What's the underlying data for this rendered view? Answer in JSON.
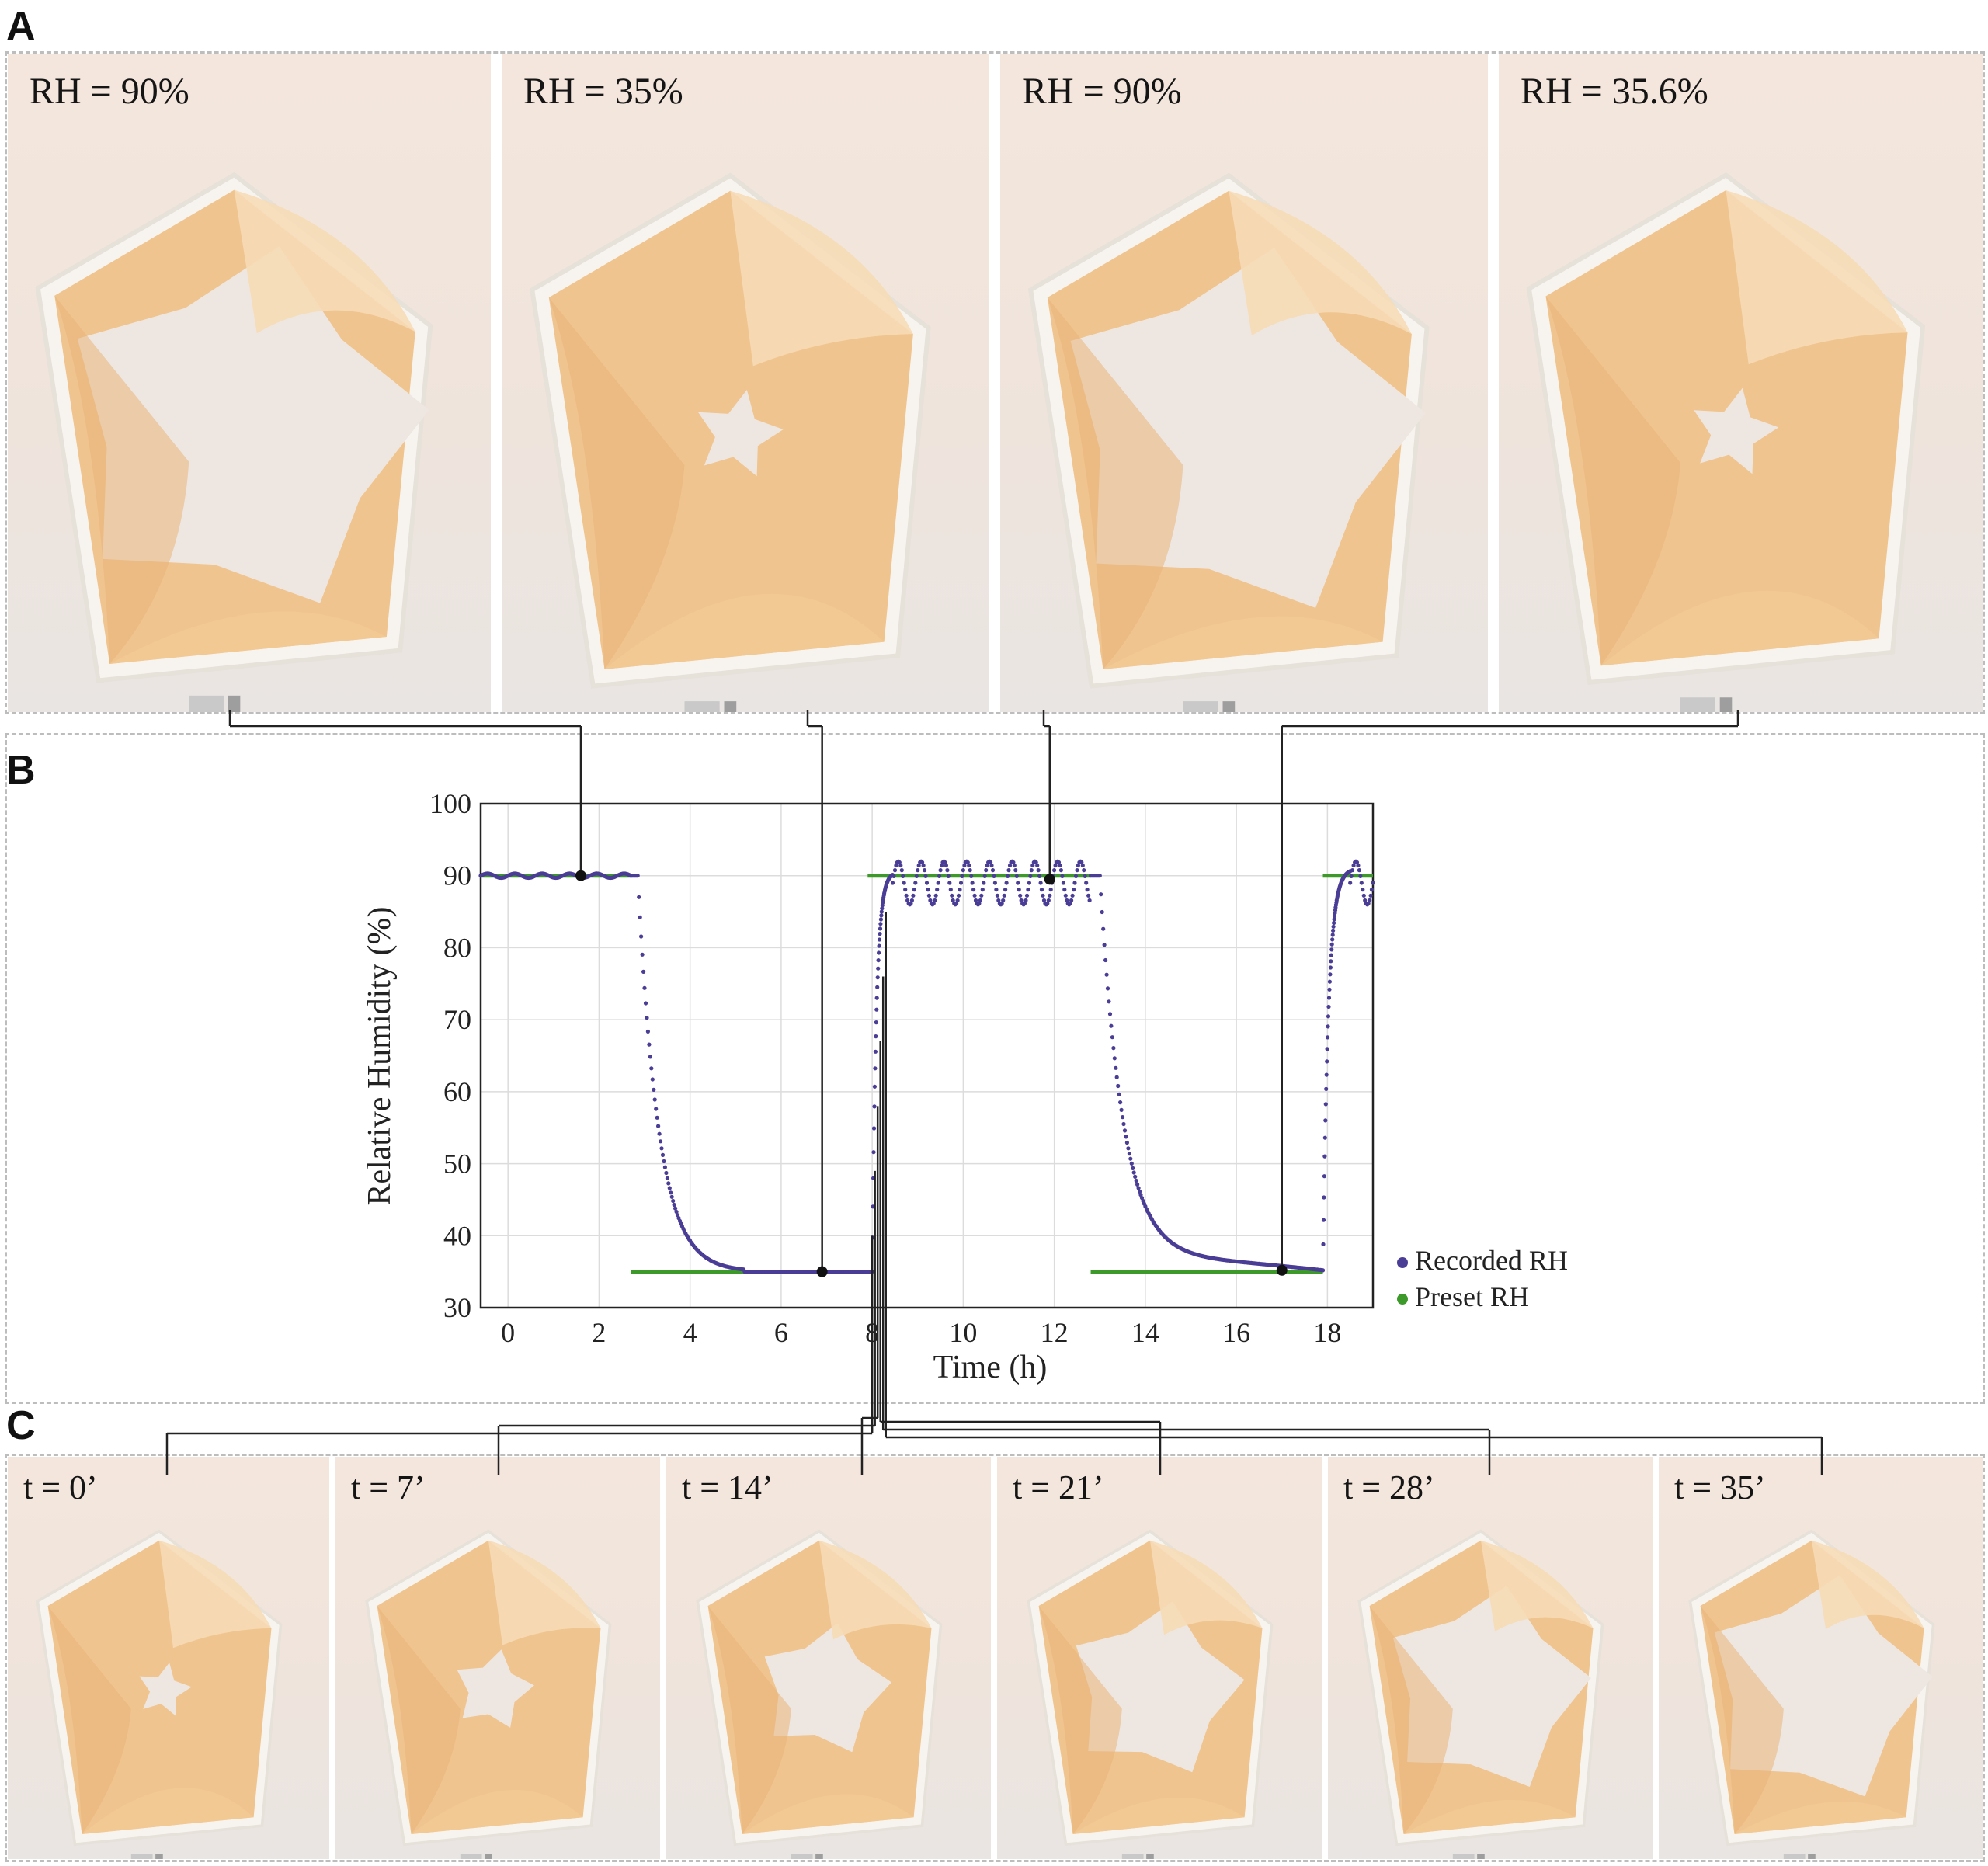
{
  "panels": {
    "a": {
      "letter": "A",
      "photos": [
        {
          "label": "RH = 90%",
          "open": 1.0
        },
        {
          "label": "RH = 35%",
          "open": 0.0
        },
        {
          "label": "RH = 90%",
          "open": 1.0
        },
        {
          "label": "RH = 35.6%",
          "open": 0.0
        }
      ]
    },
    "b": {
      "letter": "B"
    },
    "c": {
      "letter": "C",
      "photos": [
        {
          "label": "t = 0’",
          "open": 0.0
        },
        {
          "label": "t = 7’",
          "open": 0.15
        },
        {
          "label": "t = 14’",
          "open": 0.45
        },
        {
          "label": "t = 21’",
          "open": 0.7
        },
        {
          "label": "t = 28’",
          "open": 0.88
        },
        {
          "label": "t = 35’",
          "open": 1.0
        }
      ]
    }
  },
  "colors": {
    "recorded": "#4a3d96",
    "preset": "#3d9a2a",
    "petal": "#f0c48e",
    "petal_light": "#f6dcb6",
    "frame": "#f7f4ef"
  },
  "chart_data": {
    "type": "scatter",
    "xlabel": "Time (h)",
    "ylabel": "Relative Humidity (%)",
    "xlim": [
      -0.6,
      19.0
    ],
    "ylim": [
      30,
      100
    ],
    "xticks": [
      0,
      2,
      4,
      6,
      8,
      10,
      12,
      14,
      16,
      18
    ],
    "yticks": [
      30,
      40,
      50,
      60,
      70,
      80,
      90,
      100
    ],
    "grid": true,
    "legend_position": "right",
    "series": [
      {
        "name": "Recorded RH",
        "segments": [
          {
            "kind": "hold",
            "x": [
              -0.6,
              2.7
            ],
            "y": 90.0,
            "osc_amp": 0.3,
            "osc_period": 0.6
          },
          {
            "kind": "exp",
            "x": [
              2.7,
              5.2
            ],
            "from": 90.0,
            "to": 35.0,
            "tau": 0.45,
            "delay": 0.15
          },
          {
            "kind": "hold",
            "x": [
              5.2,
              8.0
            ],
            "y": 35.0
          },
          {
            "kind": "exp",
            "x": [
              8.0,
              8.45
            ],
            "from": 35.0,
            "to": 90.5,
            "tau": 0.09
          },
          {
            "kind": "osc",
            "x": [
              8.45,
              12.8
            ],
            "y": 89.0,
            "amp": 3.0,
            "period": 0.5
          },
          {
            "kind": "exp2",
            "x": [
              12.8,
              17.9
            ],
            "from": 90.0,
            "to": 35.2,
            "tau": 0.5,
            "delay": 0.2,
            "tail_y": 37.0
          },
          {
            "kind": "exp",
            "x": [
              17.9,
              18.5
            ],
            "from": 35.2,
            "to": 91.0,
            "tau": 0.12
          },
          {
            "kind": "osc",
            "x": [
              18.5,
              19.0
            ],
            "y": 89.0,
            "amp": 3.0,
            "period": 0.5
          }
        ],
        "marked_points": [
          {
            "x": 1.6,
            "y": 90.0
          },
          {
            "x": 6.9,
            "y": 35.0
          },
          {
            "x": 11.9,
            "y": 89.5
          },
          {
            "x": 17.0,
            "y": 35.2
          }
        ]
      },
      {
        "name": "Preset RH",
        "segments": [
          {
            "x": [
              -0.6,
              2.7
            ],
            "y": 90
          },
          {
            "x": 2.7,
            "y_from": 90,
            "y_to": 35,
            "vertical": false
          },
          {
            "x": [
              2.7,
              7.9
            ],
            "y": 35
          },
          {
            "x": [
              7.9,
              12.8
            ],
            "y": 90
          },
          {
            "x": [
              12.8,
              17.9
            ],
            "y": 35
          },
          {
            "x": [
              17.9,
              19.0
            ],
            "y": 90
          }
        ]
      }
    ]
  }
}
